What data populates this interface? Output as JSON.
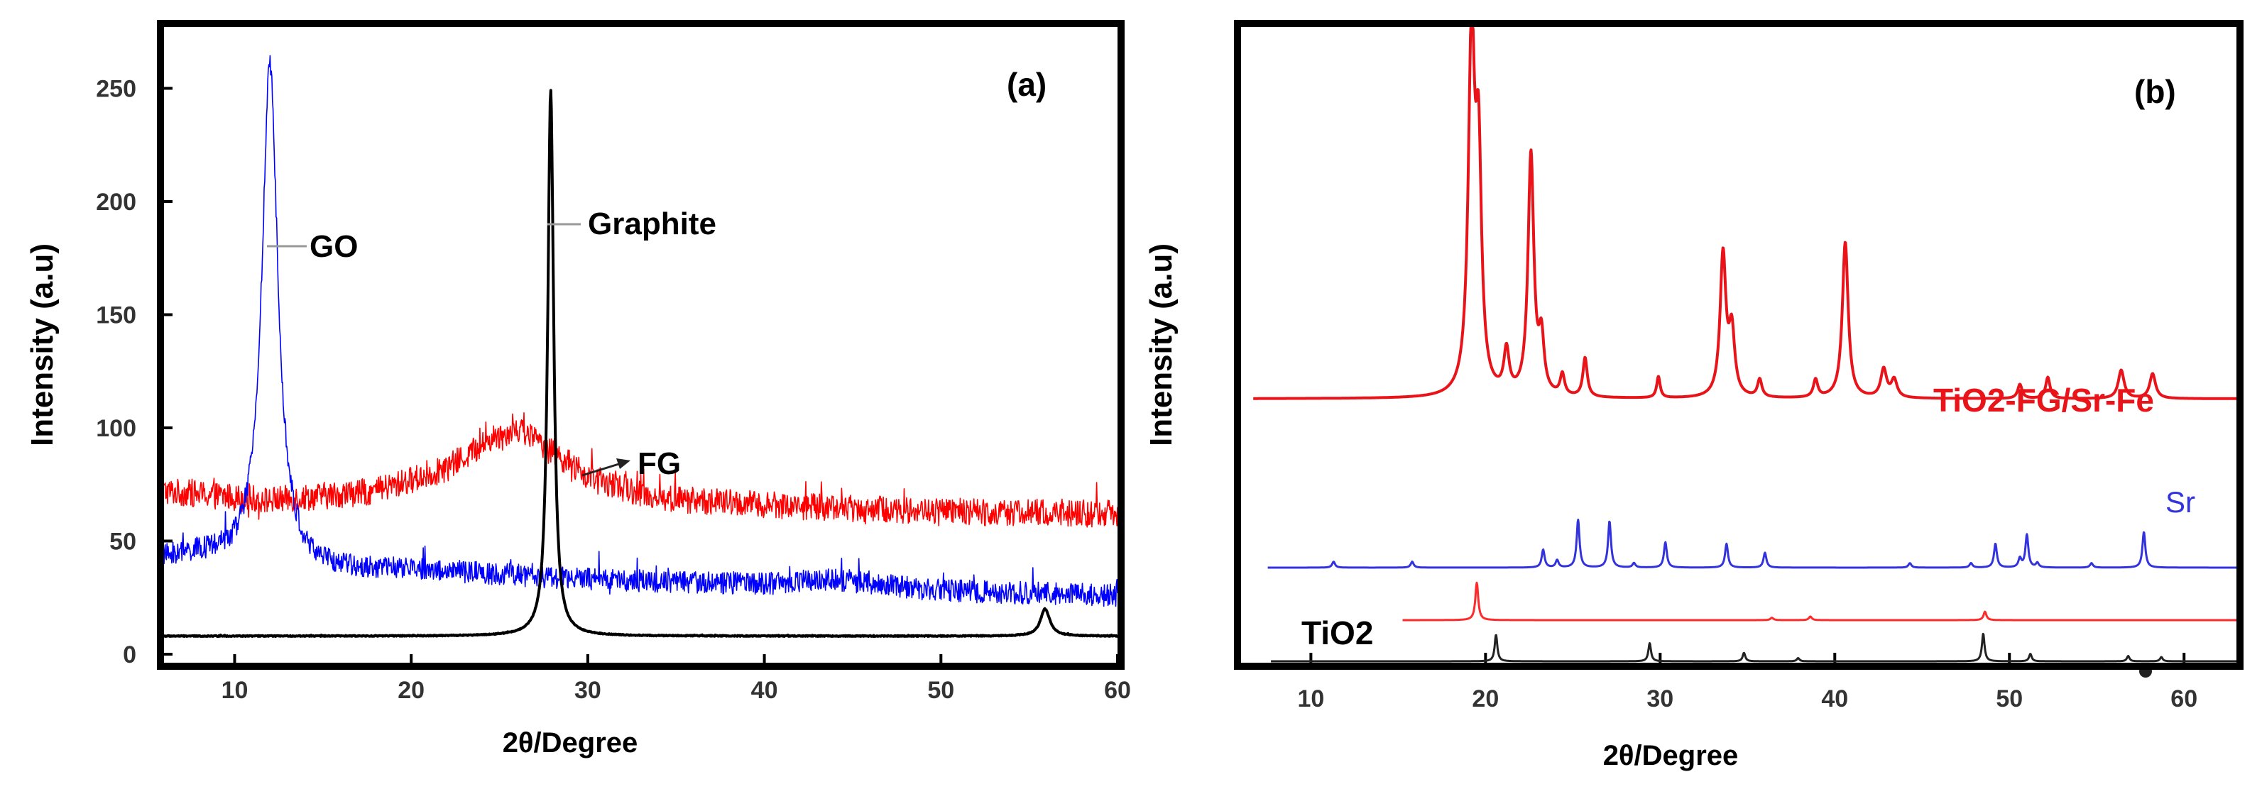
{
  "chart_data": [
    {
      "type": "line",
      "panel_label": "(a)",
      "xlabel": "2θ/Degree",
      "ylabel": "Intensity (a.u)",
      "xlim": [
        6,
        60
      ],
      "ylim": [
        0,
        270
      ],
      "xticks": [
        10,
        20,
        30,
        40,
        50,
        60
      ],
      "yticks": [
        0,
        50,
        100,
        150,
        200,
        250
      ],
      "annotations": {
        "go": "GO",
        "graphite": "Graphite",
        "fg": "FG"
      },
      "series": [
        {
          "name": "FG",
          "color": "#ff0000",
          "noise": 6,
          "baseline": [
            [
              6,
              72
            ],
            [
              12,
              68
            ],
            [
              18,
              72
            ],
            [
              22,
              82
            ],
            [
              24.5,
              95
            ],
            [
              26,
              100
            ],
            [
              28,
              90
            ],
            [
              30,
              78
            ],
            [
              34,
              69
            ],
            [
              40,
              66
            ],
            [
              50,
              63
            ],
            [
              60,
              62
            ]
          ],
          "peaks": []
        },
        {
          "name": "GO",
          "color": "#0000ff",
          "noise": 5,
          "baseline": [
            [
              6,
              42
            ],
            [
              8,
              43
            ],
            [
              10,
              40
            ],
            [
              14,
              36
            ],
            [
              20,
              37
            ],
            [
              25,
              35
            ],
            [
              30,
              33
            ],
            [
              40,
              31
            ],
            [
              44,
              33
            ],
            [
              50,
              28
            ],
            [
              60,
              26
            ]
          ],
          "peaks": [
            [
              12,
              222,
              0.55
            ]
          ]
        },
        {
          "name": "Graphite",
          "color": "#000000",
          "noise": 0.2,
          "baseline": [
            [
              6,
              8
            ],
            [
              60,
              8
            ]
          ],
          "peaks": [
            [
              27.9,
              241,
              0.2
            ],
            [
              55.9,
              12,
              0.32
            ]
          ]
        }
      ]
    },
    {
      "type": "line",
      "panel_label": "(b)",
      "xlabel": "2θ/Degree",
      "ylabel": "Intensity (a.u)",
      "xlim": [
        6,
        63
      ],
      "xticks": [
        10,
        20,
        30,
        40,
        50,
        60
      ],
      "annotations": {
        "tio2_fg": "TiO2-FG/Sr-Fe",
        "sr": "Sr",
        "tio2": "TiO2"
      },
      "series": [
        {
          "name": "TiO2-FG/Sr-Fe",
          "color": "#e8141a",
          "baseline_level": 0.08,
          "peaks": [
            [
              19.2,
              1.0,
              0.22
            ],
            [
              19.6,
              0.62,
              0.2
            ],
            [
              21.2,
              0.12,
              0.18
            ],
            [
              22.6,
              0.68,
              0.2
            ],
            [
              23.2,
              0.15,
              0.18
            ],
            [
              24.4,
              0.06,
              0.15
            ],
            [
              25.7,
              0.11,
              0.15
            ],
            [
              29.9,
              0.06,
              0.12
            ],
            [
              33.6,
              0.4,
              0.2
            ],
            [
              34.1,
              0.18,
              0.2
            ],
            [
              35.7,
              0.05,
              0.15
            ],
            [
              38.9,
              0.05,
              0.15
            ],
            [
              40.6,
              0.44,
              0.2
            ],
            [
              42.8,
              0.08,
              0.2
            ],
            [
              43.4,
              0.05,
              0.2
            ],
            [
              50.6,
              0.04,
              0.15
            ],
            [
              52.2,
              0.06,
              0.15
            ],
            [
              56.4,
              0.08,
              0.2
            ],
            [
              58.2,
              0.07,
              0.2
            ]
          ]
        },
        {
          "name": "Sr",
          "color": "#3333dd",
          "baseline_level": 0.0,
          "peaks": [
            [
              11.3,
              0.04,
              0.1
            ],
            [
              15.8,
              0.04,
              0.1
            ],
            [
              23.3,
              0.12,
              0.1
            ],
            [
              24.1,
              0.05,
              0.1
            ],
            [
              25.3,
              0.32,
              0.1
            ],
            [
              27.1,
              0.31,
              0.1
            ],
            [
              28.5,
              0.03,
              0.1
            ],
            [
              30.3,
              0.17,
              0.1
            ],
            [
              33.8,
              0.16,
              0.1
            ],
            [
              36.0,
              0.1,
              0.1
            ],
            [
              44.3,
              0.03,
              0.1
            ],
            [
              47.8,
              0.03,
              0.1
            ],
            [
              49.2,
              0.16,
              0.1
            ],
            [
              50.6,
              0.06,
              0.1
            ],
            [
              51.0,
              0.22,
              0.1
            ],
            [
              51.6,
              0.03,
              0.1
            ],
            [
              54.7,
              0.03,
              0.1
            ],
            [
              57.7,
              0.24,
              0.1
            ]
          ]
        },
        {
          "name": "TiO2-FG",
          "color": "#ff2a2a",
          "baseline_level": 0.0,
          "peaks": [
            [
              19.5,
              0.31,
              0.1
            ],
            [
              36.4,
              0.02,
              0.1
            ],
            [
              38.6,
              0.03,
              0.1
            ],
            [
              48.6,
              0.07,
              0.1
            ]
          ]
        },
        {
          "name": "TiO2",
          "color": "#222222",
          "baseline_level": 0.0,
          "peaks": [
            [
              20.6,
              0.25,
              0.09
            ],
            [
              29.4,
              0.17,
              0.09
            ],
            [
              34.8,
              0.08,
              0.09
            ],
            [
              37.9,
              0.03,
              0.09
            ],
            [
              48.5,
              0.26,
              0.09
            ],
            [
              51.2,
              0.07,
              0.09
            ],
            [
              56.8,
              0.05,
              0.09
            ],
            [
              58.7,
              0.04,
              0.09
            ]
          ]
        }
      ]
    }
  ]
}
